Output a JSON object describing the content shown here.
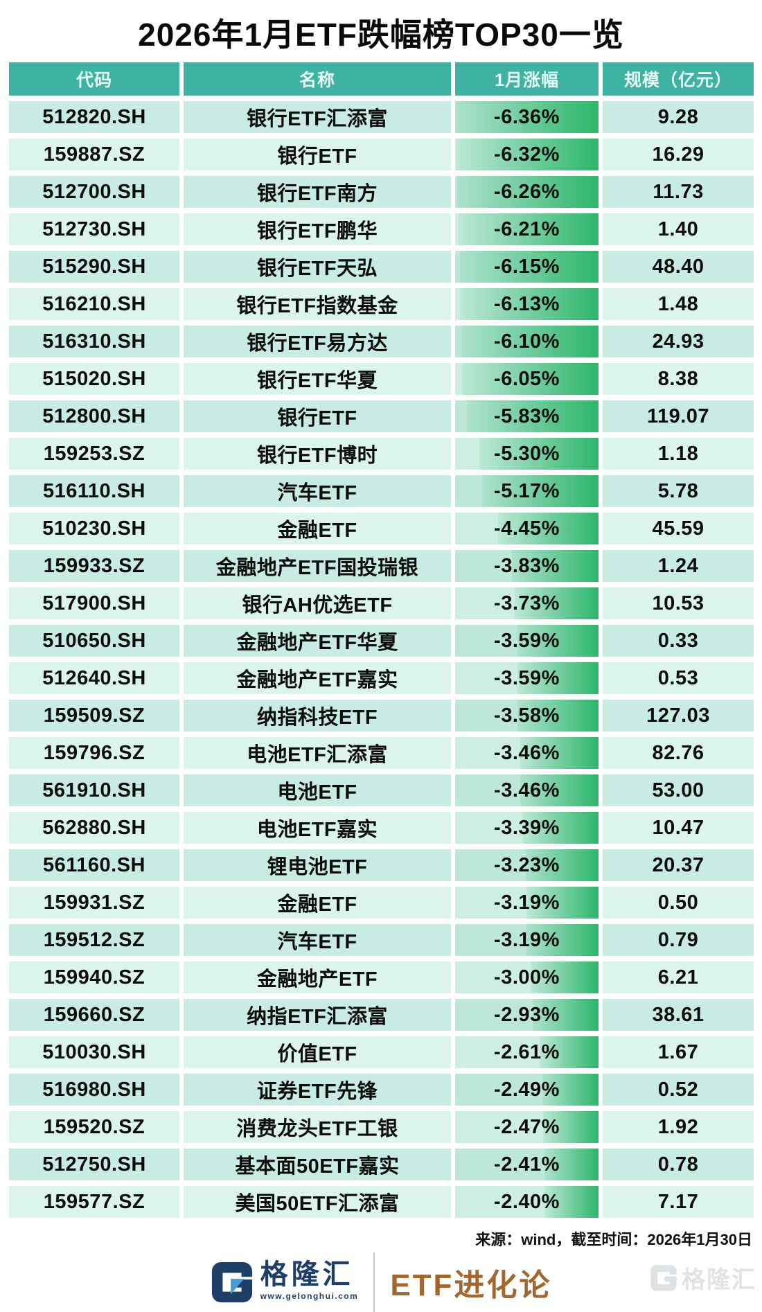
{
  "title": "2026年1月ETF跌幅榜TOP30一览",
  "chart_data": {
    "type": "table",
    "title": "2026年1月ETF跌幅榜TOP30一览",
    "columns": [
      "代码",
      "名称",
      "1月涨幅",
      "规模（亿元）"
    ],
    "max_abs_change_pct": 6.36,
    "rows": [
      {
        "code": "512820.SH",
        "name": "银行ETF汇添富",
        "change": "-6.36%",
        "change_pct": -6.36,
        "scale": "9.28"
      },
      {
        "code": "159887.SZ",
        "name": "银行ETF",
        "change": "-6.32%",
        "change_pct": -6.32,
        "scale": "16.29"
      },
      {
        "code": "512700.SH",
        "name": "银行ETF南方",
        "change": "-6.26%",
        "change_pct": -6.26,
        "scale": "11.73"
      },
      {
        "code": "512730.SH",
        "name": "银行ETF鹏华",
        "change": "-6.21%",
        "change_pct": -6.21,
        "scale": "1.40"
      },
      {
        "code": "515290.SH",
        "name": "银行ETF天弘",
        "change": "-6.15%",
        "change_pct": -6.15,
        "scale": "48.40"
      },
      {
        "code": "516210.SH",
        "name": "银行ETF指数基金",
        "change": "-6.13%",
        "change_pct": -6.13,
        "scale": "1.48"
      },
      {
        "code": "516310.SH",
        "name": "银行ETF易方达",
        "change": "-6.10%",
        "change_pct": -6.1,
        "scale": "24.93"
      },
      {
        "code": "515020.SH",
        "name": "银行ETF华夏",
        "change": "-6.05%",
        "change_pct": -6.05,
        "scale": "8.38"
      },
      {
        "code": "512800.SH",
        "name": "银行ETF",
        "change": "-5.83%",
        "change_pct": -5.83,
        "scale": "119.07"
      },
      {
        "code": "159253.SZ",
        "name": "银行ETF博时",
        "change": "-5.30%",
        "change_pct": -5.3,
        "scale": "1.18"
      },
      {
        "code": "516110.SH",
        "name": "汽车ETF",
        "change": "-5.17%",
        "change_pct": -5.17,
        "scale": "5.78"
      },
      {
        "code": "510230.SH",
        "name": "金融ETF",
        "change": "-4.45%",
        "change_pct": -4.45,
        "scale": "45.59"
      },
      {
        "code": "159933.SZ",
        "name": "金融地产ETF国投瑞银",
        "change": "-3.83%",
        "change_pct": -3.83,
        "scale": "1.24"
      },
      {
        "code": "517900.SH",
        "name": "银行AH优选ETF",
        "change": "-3.73%",
        "change_pct": -3.73,
        "scale": "10.53"
      },
      {
        "code": "510650.SH",
        "name": "金融地产ETF华夏",
        "change": "-3.59%",
        "change_pct": -3.59,
        "scale": "0.33"
      },
      {
        "code": "512640.SH",
        "name": "金融地产ETF嘉实",
        "change": "-3.59%",
        "change_pct": -3.59,
        "scale": "0.53"
      },
      {
        "code": "159509.SZ",
        "name": "纳指科技ETF",
        "change": "-3.58%",
        "change_pct": -3.58,
        "scale": "127.03"
      },
      {
        "code": "159796.SZ",
        "name": "电池ETF汇添富",
        "change": "-3.46%",
        "change_pct": -3.46,
        "scale": "82.76"
      },
      {
        "code": "561910.SH",
        "name": "电池ETF",
        "change": "-3.46%",
        "change_pct": -3.46,
        "scale": "53.00"
      },
      {
        "code": "562880.SH",
        "name": "电池ETF嘉实",
        "change": "-3.39%",
        "change_pct": -3.39,
        "scale": "10.47"
      },
      {
        "code": "561160.SH",
        "name": "锂电池ETF",
        "change": "-3.23%",
        "change_pct": -3.23,
        "scale": "20.37"
      },
      {
        "code": "159931.SZ",
        "name": "金融ETF",
        "change": "-3.19%",
        "change_pct": -3.19,
        "scale": "0.50"
      },
      {
        "code": "159512.SZ",
        "name": "汽车ETF",
        "change": "-3.19%",
        "change_pct": -3.19,
        "scale": "0.79"
      },
      {
        "code": "159940.SZ",
        "name": "金融地产ETF",
        "change": "-3.00%",
        "change_pct": -3.0,
        "scale": "6.21"
      },
      {
        "code": "159660.SZ",
        "name": "纳指ETF汇添富",
        "change": "-2.93%",
        "change_pct": -2.93,
        "scale": "38.61"
      },
      {
        "code": "510030.SH",
        "name": "价值ETF",
        "change": "-2.61%",
        "change_pct": -2.61,
        "scale": "1.67"
      },
      {
        "code": "516980.SH",
        "name": "证券ETF先锋",
        "change": "-2.49%",
        "change_pct": -2.49,
        "scale": "0.52"
      },
      {
        "code": "159520.SZ",
        "name": "消费龙头ETF工银",
        "change": "-2.47%",
        "change_pct": -2.47,
        "scale": "1.92"
      },
      {
        "code": "512750.SH",
        "name": "基本面50ETF嘉实",
        "change": "-2.41%",
        "change_pct": -2.41,
        "scale": "0.78"
      },
      {
        "code": "159577.SZ",
        "name": "美国50ETF汇添富",
        "change": "-2.40%",
        "change_pct": -2.4,
        "scale": "7.17"
      }
    ]
  },
  "footer": {
    "source": "来源：wind，截至时间：2026年1月30日",
    "brand_name": "格隆汇",
    "brand_url": "www.gelonghui.com",
    "column": "ETF进化论",
    "watermark": "格隆汇"
  },
  "colors": {
    "header_bg": "#3fb3a1",
    "header_text": "#e9fbf7",
    "row_odd_bg": "#c8ece3",
    "row_even_bg": "#dbf4ee",
    "bar_green": "#2db66a",
    "brand_navy": "#1d3e66",
    "brand_blue": "#4a9bd5",
    "column_brown": "#a2672f",
    "watermark_gray": "#d6dadd"
  }
}
